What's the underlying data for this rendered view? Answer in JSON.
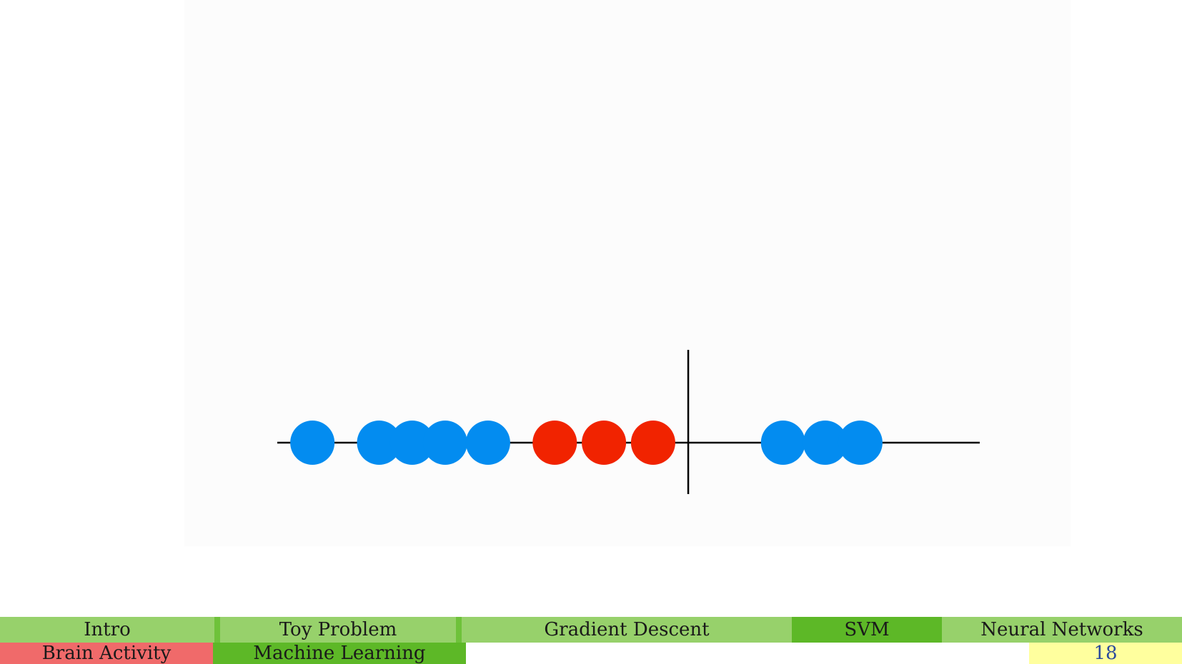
{
  "nav": {
    "top": [
      {
        "label": "Intro",
        "color": "#97d16b"
      },
      {
        "label": "Toy Problem",
        "color": "#97d16b"
      },
      {
        "label": "Gradient Descent",
        "color": "#97d16b"
      },
      {
        "label": "SVM",
        "color": "#5db827"
      },
      {
        "label": "Neural Networks",
        "color": "#97d16b"
      }
    ],
    "bottom": [
      {
        "label": "Brain Activity",
        "color": "#f06a6a"
      },
      {
        "label": "Machine Learning",
        "color": "#5db827"
      }
    ],
    "separator_color": "#6ec23a",
    "page_number": "18",
    "page_number_bg": "#ffff9e"
  },
  "figure": {
    "axis_color": "#000000",
    "blue": "#038cf0",
    "red": "#f12300",
    "points": [
      {
        "x": 0.5,
        "cls": "blue"
      },
      {
        "x": 1.45,
        "cls": "blue"
      },
      {
        "x": 1.92,
        "cls": "blue"
      },
      {
        "x": 2.39,
        "cls": "blue"
      },
      {
        "x": 3.0,
        "cls": "blue"
      },
      {
        "x": 3.95,
        "cls": "red"
      },
      {
        "x": 4.65,
        "cls": "red"
      },
      {
        "x": 5.35,
        "cls": "red"
      },
      {
        "x": 7.2,
        "cls": "blue"
      },
      {
        "x": 7.8,
        "cls": "blue"
      },
      {
        "x": 8.3,
        "cls": "blue"
      }
    ],
    "divider_x": 5.85,
    "x_range": [
      0,
      10
    ]
  }
}
